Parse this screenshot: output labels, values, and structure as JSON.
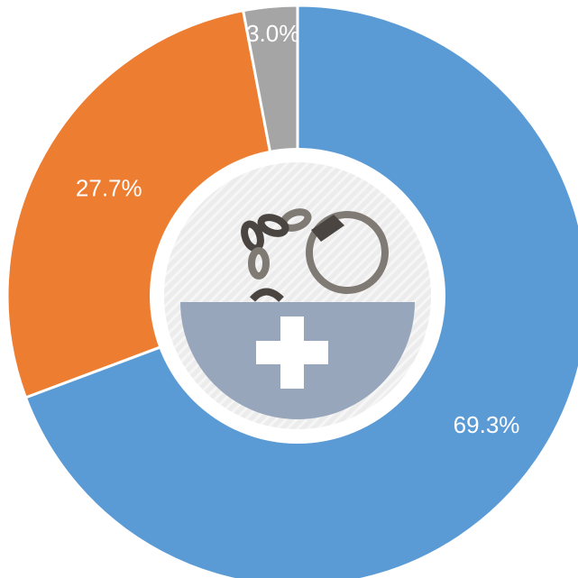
{
  "chart_data": {
    "type": "donut",
    "values": [
      69.3,
      27.7,
      3.0
    ],
    "value_labels": [
      "69.3%",
      "27.7%",
      "3.0%"
    ],
    "colors": [
      "#5b9bd5",
      "#ed7d31",
      "#a5a5a5"
    ]
  }
}
